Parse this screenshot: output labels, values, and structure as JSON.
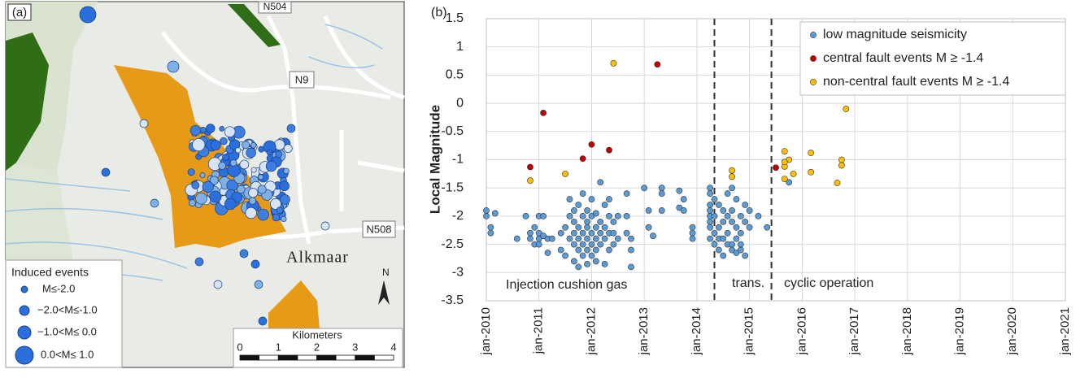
{
  "map": {
    "panel_label": "(a)",
    "legend_title": "Induced events",
    "legend_entries": [
      "M≤-2.0",
      "−2.0<M≤-1.0",
      "−1.0<M≤ 0.0",
      "0.0<M≤ 1.0"
    ],
    "scale_title": "Kilometers",
    "scale_ticks": [
      0,
      1,
      2,
      3,
      4
    ],
    "place_labels": [
      "Alkmaar",
      "N9",
      "N504",
      "N508"
    ],
    "north": "N"
  },
  "chart_data": {
    "type": "scatter",
    "panel_label": "(b)",
    "y_label": "Local Magnitude",
    "ylim": [
      -3.5,
      1.5
    ],
    "yticks": [
      -3.5,
      -3,
      -2.5,
      -2,
      -1.5,
      -1,
      -0.5,
      0,
      0.5,
      1,
      1.5
    ],
    "xlim": [
      "2010-01",
      "2021-01"
    ],
    "xticks": [
      {
        "value": "2010-01",
        "label": "jan-2010"
      },
      {
        "value": "2011-01",
        "label": "jan-2011"
      },
      {
        "value": "2012-01",
        "label": "jan-2012"
      },
      {
        "value": "2013-01",
        "label": "jan-2013"
      },
      {
        "value": "2014-01",
        "label": "jan-2014"
      },
      {
        "value": "2015-01",
        "label": "jan-2015"
      },
      {
        "value": "2016-01",
        "label": "jan-2016"
      },
      {
        "value": "2017-01",
        "label": "jan-2017"
      },
      {
        "value": "2018-01",
        "label": "jan-2018"
      },
      {
        "value": "2019-01",
        "label": "jan-2019"
      },
      {
        "value": "2020-01",
        "label": "jan-2020"
      },
      {
        "value": "2021-01",
        "label": "jan-2021"
      }
    ],
    "grid": true,
    "legend": "upper right",
    "phase_lines": [
      "2014-05",
      "2015-06"
    ],
    "annotations": [
      "Injection cushion gas",
      "trans.",
      "cyclic operation"
    ],
    "series": [
      {
        "name": "low magnitude seismicity",
        "color": "#5b9bd5",
        "x": [
          "2010-01",
          "2010-01",
          "2010-02",
          "2010-02",
          "2010-03",
          "2010-08",
          "2010-10",
          "2010-11",
          "2010-11",
          "2010-12",
          "2010-12",
          "2011-01",
          "2011-01",
          "2011-01",
          "2011-01",
          "2011-02",
          "2011-02",
          "2011-03",
          "2011-03",
          "2011-04",
          "2011-06",
          "2011-06",
          "2011-07",
          "2011-07",
          "2011-08",
          "2011-08",
          "2011-08",
          "2011-09",
          "2011-09",
          "2011-09",
          "2011-09",
          "2011-09",
          "2011-10",
          "2011-10",
          "2011-10",
          "2011-10",
          "2011-10",
          "2011-11",
          "2011-11",
          "2011-11",
          "2011-11",
          "2011-11",
          "2011-12",
          "2011-12",
          "2011-12",
          "2011-12",
          "2011-12",
          "2011-12",
          "2012-01",
          "2012-01",
          "2012-01",
          "2012-01",
          "2012-01",
          "2012-02",
          "2012-02",
          "2012-02",
          "2012-02",
          "2012-02",
          "2012-03",
          "2012-03",
          "2012-03",
          "2012-03",
          "2012-04",
          "2012-04",
          "2012-04",
          "2012-04",
          "2012-05",
          "2012-05",
          "2012-05",
          "2012-05",
          "2012-06",
          "2012-06",
          "2012-06",
          "2012-07",
          "2012-07",
          "2012-09",
          "2012-09",
          "2012-09",
          "2012-10",
          "2012-10",
          "2012-10",
          "2013-01",
          "2013-02",
          "2013-02",
          "2013-03",
          "2013-05",
          "2013-05",
          "2013-05",
          "2013-09",
          "2013-09",
          "2013-10",
          "2013-10",
          "2013-12",
          "2013-12",
          "2013-12",
          "2014-04",
          "2014-04",
          "2014-04",
          "2014-04",
          "2014-04",
          "2014-04",
          "2014-04",
          "2014-04",
          "2014-05",
          "2014-05",
          "2014-05",
          "2014-05",
          "2014-06",
          "2014-06",
          "2014-06",
          "2014-06",
          "2014-07",
          "2014-07",
          "2014-07",
          "2014-07",
          "2014-08",
          "2014-08",
          "2014-08",
          "2014-08",
          "2014-09",
          "2014-09",
          "2014-09",
          "2014-09",
          "2014-09",
          "2014-10",
          "2014-10",
          "2014-10",
          "2014-10",
          "2014-11",
          "2014-11",
          "2014-11",
          "2014-11",
          "2014-12",
          "2014-12",
          "2014-12",
          "2015-01",
          "2015-01",
          "2015-03",
          "2015-05",
          "2015-10"
        ],
        "values": [
          -1.9,
          -2.0,
          -2.2,
          -2.3,
          -1.95,
          -2.4,
          -2.0,
          -2.4,
          -2.3,
          -2.2,
          -2.5,
          -2.0,
          -2.4,
          -2.3,
          -2.5,
          -2.0,
          -2.35,
          -2.4,
          -2.65,
          -2.4,
          -2.3,
          -2.6,
          -2.2,
          -2.7,
          -2.0,
          -2.4,
          -1.7,
          -2.3,
          -2.5,
          -1.9,
          -2.1,
          -2.8,
          -2.2,
          -2.4,
          -2.6,
          -1.8,
          -2.9,
          -2.0,
          -2.3,
          -2.5,
          -2.7,
          -1.6,
          -2.1,
          -2.4,
          -2.2,
          -2.6,
          -2.85,
          -1.9,
          -2.3,
          -2.5,
          -2.0,
          -2.7,
          -1.7,
          -2.2,
          -2.4,
          -2.6,
          -2.8,
          -1.95,
          -1.4,
          -2.3,
          -2.5,
          -2.1,
          -2.2,
          -2.4,
          -1.8,
          -2.85,
          -2.0,
          -2.3,
          -2.6,
          -1.7,
          -2.3,
          -2.5,
          -2.1,
          -2.4,
          -2.0,
          -1.6,
          -2.0,
          -2.3,
          -2.4,
          -2.6,
          -2.9,
          -1.5,
          -1.9,
          -2.2,
          -2.35,
          -1.6,
          -1.9,
          -1.5,
          -1.85,
          -1.55,
          -1.7,
          -1.9,
          -2.3,
          -2.4,
          -2.2,
          -1.5,
          -1.6,
          -1.8,
          -2.0,
          -2.2,
          -2.4,
          -2.1,
          -1.9,
          -2.0,
          -2.3,
          -2.5,
          -1.7,
          -2.2,
          -2.4,
          -2.6,
          -1.8,
          -2.1,
          -2.4,
          -2.7,
          -1.9,
          -1.6,
          -2.0,
          -2.3,
          -2.5,
          -1.5,
          -2.1,
          -2.5,
          -2.6,
          -1.9,
          -1.7,
          -2.2,
          -2.4,
          -2.65,
          -2.0,
          -2.3,
          -2.5,
          -2.6,
          -1.8,
          -2.1,
          -2.7,
          -1.9,
          -2.2,
          -2.0,
          -2.2,
          -1.4
        ]
      },
      {
        "name": "central fault events M ≥ -1.4",
        "color": "#c00000",
        "x": [
          "2010-11",
          "2011-02",
          "2011-11",
          "2012-01",
          "2012-05",
          "2013-04",
          "2015-07"
        ],
        "values": [
          -1.13,
          -0.17,
          -0.98,
          -0.73,
          -0.83,
          0.69,
          -1.14
        ]
      },
      {
        "name": "non-central fault events M ≥ -1.4",
        "color": "#ffc000",
        "x": [
          "2010-11",
          "2011-07",
          "2012-06",
          "2014-09",
          "2014-09",
          "2015-09",
          "2015-09",
          "2015-10",
          "2015-09",
          "2015-09",
          "2015-11",
          "2016-03",
          "2016-03",
          "2016-09",
          "2016-10",
          "2016-10",
          "2016-11"
        ],
        "values": [
          -1.37,
          -1.25,
          0.71,
          -1.19,
          -1.3,
          -1.12,
          -0.85,
          -1.0,
          -1.34,
          -1.04,
          -1.25,
          -0.88,
          -1.22,
          -1.41,
          -1.0,
          -1.1,
          -0.1
        ]
      }
    ]
  }
}
